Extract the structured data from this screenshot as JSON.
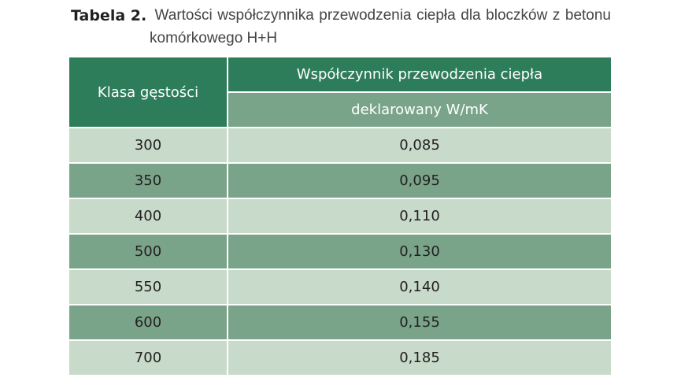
{
  "caption": {
    "label": "Tabela 2.",
    "words_line1": [
      "Wartości",
      "współczynnika",
      "przewodzenia",
      "ciepła",
      "dla",
      "bloczków",
      "z",
      "betonu"
    ],
    "line2": "komórkowego H+H"
  },
  "table": {
    "header_col1": "Klasa gęstości",
    "header_col2_top": "Współczynnik przewodzenia ciepła",
    "header_col2_sub": "deklarowany W/mK",
    "rows": [
      {
        "klasa": "300",
        "wartosc": "0,085"
      },
      {
        "klasa": "350",
        "wartosc": "0,095"
      },
      {
        "klasa": "400",
        "wartosc": "0,110"
      },
      {
        "klasa": "500",
        "wartosc": "0,130"
      },
      {
        "klasa": "550",
        "wartosc": "0,140"
      },
      {
        "klasa": "600",
        "wartosc": "0,155"
      },
      {
        "klasa": "700",
        "wartosc": "0,185"
      }
    ]
  },
  "colors": {
    "header_dark": "#2e7d5a",
    "header_mid": "#7aa48a",
    "row_light": "#c8dac9",
    "row_dark": "#7aa48a"
  }
}
